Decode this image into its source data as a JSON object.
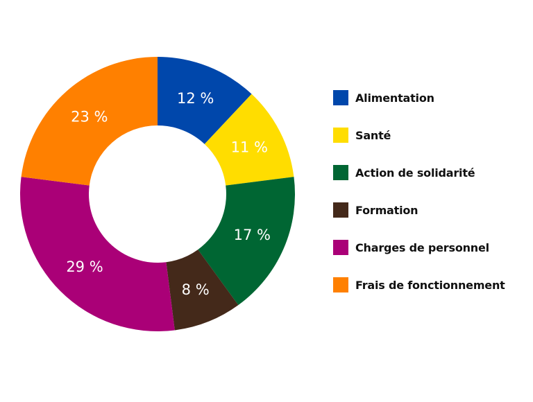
{
  "chart_data": {
    "type": "pie",
    "title": "",
    "donut": true,
    "legend_position": "right",
    "series": [
      {
        "label": "Alimentation",
        "value": 12,
        "display": "12 %",
        "color": "#0047AB"
      },
      {
        "label": "Santé",
        "value": 11,
        "display": "11 %",
        "color": "#FFDD00"
      },
      {
        "label": "Action de solidarité",
        "value": 17,
        "display": "17 %",
        "color": "#006633"
      },
      {
        "label": "Formation",
        "value": 8,
        "display": "8 %",
        "color": "#44291A"
      },
      {
        "label": "Charges de personnel",
        "value": 29,
        "display": "29 %",
        "color": "#AA0077"
      },
      {
        "label": "Frais de fonctionnement",
        "value": 23,
        "display": "23 %",
        "color": "#FF8000"
      }
    ]
  }
}
